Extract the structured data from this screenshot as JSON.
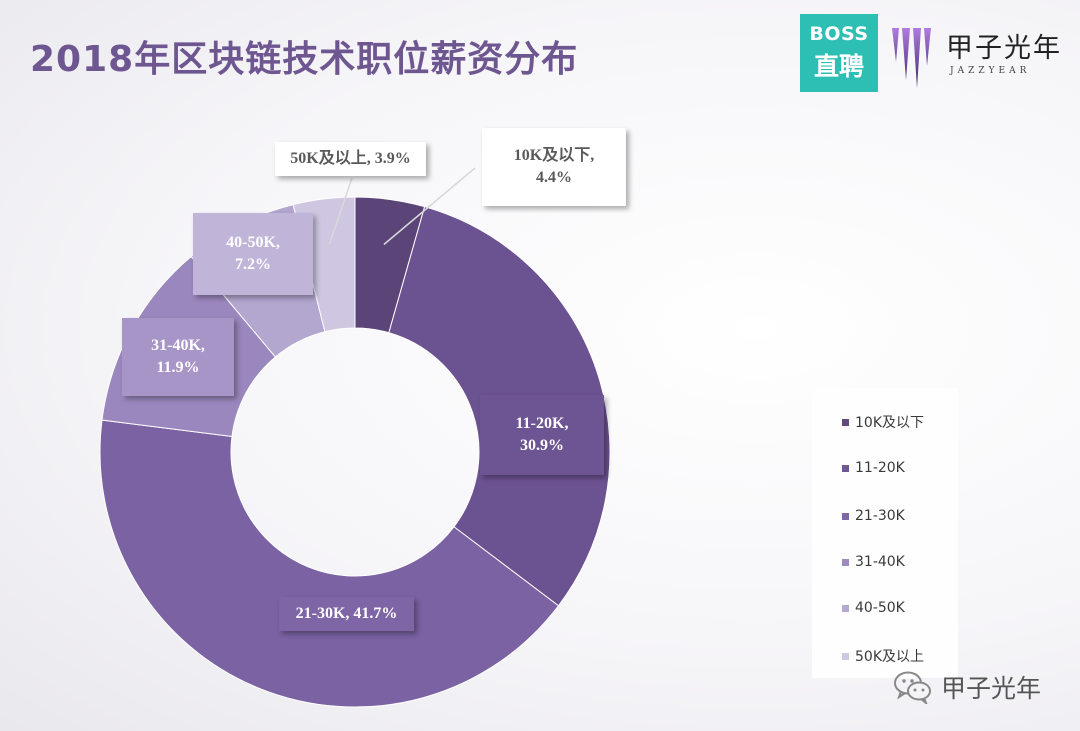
{
  "header": {
    "title": "2018年区块链技术职位薪资分布"
  },
  "logos": {
    "boss_line1": "BOSS",
    "boss_line2": "直聘",
    "brand_cn": "甲子光年",
    "brand_en": "JAZZYEAR"
  },
  "watermark": {
    "text": "甲子光年"
  },
  "chart_data": {
    "type": "pie",
    "donut": true,
    "title": "2018年区块链技术职位薪资分布",
    "legend_position": "right",
    "slices": [
      {
        "label": "10K及以下",
        "value": 4.4,
        "pct_label": "4.4%",
        "color": "#5a4478"
      },
      {
        "label": "11-20K",
        "value": 30.9,
        "pct_label": "30.9%",
        "color": "#6b5291"
      },
      {
        "label": "21-30K",
        "value": 41.7,
        "pct_label": "41.7%",
        "color": "#7a62a3"
      },
      {
        "label": "31-40K",
        "value": 11.9,
        "pct_label": "11.9%",
        "color": "#9a87bd"
      },
      {
        "label": "40-50K",
        "value": 7.2,
        "pct_label": "7.2%",
        "color": "#b3a6cf"
      },
      {
        "label": "50K及以上",
        "value": 3.9,
        "pct_label": "3.9%",
        "color": "#cfc7e1"
      }
    ]
  }
}
